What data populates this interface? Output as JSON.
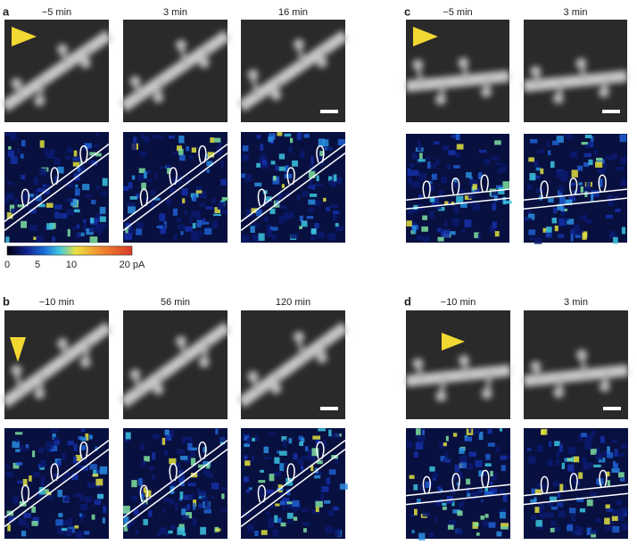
{
  "panels": [
    {
      "label": "a",
      "times": [
        "−5 min",
        "3 min",
        "16 min"
      ]
    },
    {
      "label": "b",
      "times": [
        "−10 min",
        "56 min",
        "120 min"
      ]
    },
    {
      "label": "c",
      "times": [
        "−5 min",
        "3 min"
      ]
    },
    {
      "label": "d",
      "times": [
        "−10 min",
        "3 min"
      ]
    }
  ],
  "colorbar": {
    "ticks": [
      0,
      5,
      10
    ],
    "end_label": "20 pA"
  }
}
